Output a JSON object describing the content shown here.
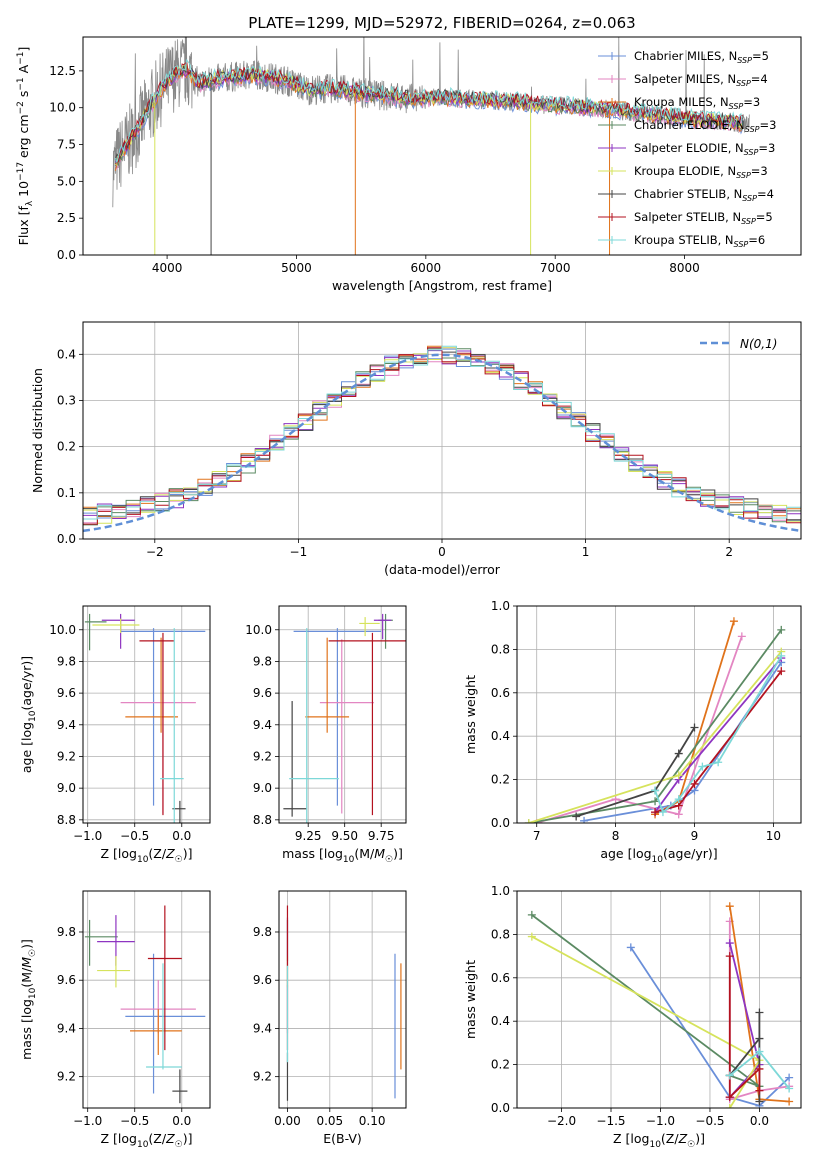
{
  "figure": {
    "title": "PLATE=1299, MJD=52972, FIBERID=0264, z=0.063"
  },
  "models": [
    {
      "name": "Chabrier MILES",
      "n_ssp": "5",
      "color": "#6a8fd9"
    },
    {
      "name": "Salpeter MILES",
      "n_ssp": "4",
      "color": "#e386c2"
    },
    {
      "name": "Kroupa MILES",
      "n_ssp": "3",
      "color": "#e0731b"
    },
    {
      "name": "Chabrier ELODIE",
      "n_ssp": "3",
      "color": "#5b8a63"
    },
    {
      "name": "Salpeter ELODIE",
      "n_ssp": "3",
      "color": "#8e35c1"
    },
    {
      "name": "Kroupa ELODIE",
      "n_ssp": "3",
      "color": "#d6e35c"
    },
    {
      "name": "Chabrier STELIB",
      "n_ssp": "4",
      "color": "#444444"
    },
    {
      "name": "Salpeter STELIB",
      "n_ssp": "5",
      "color": "#b3121f"
    },
    {
      "name": "Kroupa STELIB",
      "n_ssp": "6",
      "color": "#7dd8d8"
    }
  ],
  "legend_prefix": "N",
  "legend_sub": "SSP",
  "chart_data": [
    {
      "id": "spectrum",
      "type": "line",
      "xlabel": "wavelength [Angstrom, rest frame]",
      "ylabel": "Flux [f_λ 10^-17 erg cm^-2 s^-1 A^-1]",
      "xlim": [
        3350,
        8900
      ],
      "ylim": [
        0,
        14.8
      ],
      "xticks": [
        4000,
        5000,
        6000,
        7000,
        8000
      ],
      "yticks": [
        0.0,
        2.5,
        5.0,
        7.5,
        10.0,
        12.5
      ],
      "ytick_labels": [
        "0.0",
        "2.5",
        "5.0",
        "7.5",
        "10.0",
        "12.5"
      ],
      "grid": false,
      "legend": "upper right",
      "continuum": {
        "x": [
          3580,
          3650,
          3750,
          3850,
          3950,
          4050,
          4150,
          4250,
          4350,
          4500,
          4700,
          4900,
          5100,
          5300,
          5500,
          5700,
          5900,
          6100,
          6300,
          6500,
          6700,
          6900,
          7100,
          7300,
          7500,
          7700,
          7900,
          8100,
          8300,
          8500
        ],
        "y": [
          5.8,
          7.0,
          8.2,
          9.8,
          11.2,
          12.2,
          12.6,
          11.6,
          11.9,
          12.1,
          12.2,
          11.9,
          11.2,
          11.3,
          11.0,
          10.8,
          10.6,
          10.7,
          10.6,
          10.5,
          10.4,
          10.2,
          10.1,
          10.0,
          9.8,
          9.6,
          9.4,
          9.2,
          9.1,
          8.9
        ]
      }
    },
    {
      "id": "residuals",
      "type": "histogram",
      "xlabel": "(data-model)/error",
      "ylabel": "Normed distribution",
      "xlim": [
        -2.5,
        2.5
      ],
      "ylim": [
        0,
        0.47
      ],
      "xticks": [
        -2,
        -1,
        0,
        1,
        2
      ],
      "yticks": [
        0.0,
        0.1,
        0.2,
        0.3,
        0.4
      ],
      "ytick_labels": [
        "0.0",
        "0.1",
        "0.2",
        "0.3",
        "0.4"
      ],
      "grid": true,
      "legend": "upper right",
      "reference_label": "N(0,1)",
      "reference": {
        "mean": 0,
        "sigma": 1
      },
      "bins": {
        "start": -2.5,
        "width": 0.1,
        "count": 50
      },
      "noise": [
        0.004,
        -0.006,
        0.008,
        -0.003,
        0.01,
        -0.009,
        0.005,
        0.002,
        -0.011,
        0.007,
        0.012,
        -0.004,
        -0.008,
        0.006,
        0.003,
        -0.012,
        0.009,
        -0.002,
        0.011,
        -0.007,
        0.001,
        0.013,
        -0.01,
        0.004,
        -0.005,
        0.008,
        -0.013,
        0.006,
        0.002,
        -0.009,
        0.01,
        -0.003,
        0.007,
        -0.006,
        0.012,
        -0.011,
        0.003,
        0.005,
        -0.008,
        0.009,
        -0.004,
        0.011,
        -0.007,
        0.002,
        0.006,
        -0.012,
        0.008,
        -0.002,
        0.004,
        -0.006,
        0.01,
        -0.005,
        0.003,
        -0.009,
        0.007
      ]
    },
    {
      "id": "age_vs_z",
      "type": "errorbar",
      "xlabel": "Z [log10(Z/Z☉)]",
      "ylabel": "age [log10(age/yr)]",
      "xlim": [
        -1.05,
        0.3
      ],
      "ylim": [
        8.78,
        10.15
      ],
      "xticks": [
        -1.0,
        -0.5,
        0.0
      ],
      "xtick_labels": [
        "−1.0",
        "−0.5",
        "0.0"
      ],
      "yticks": [
        8.8,
        9.0,
        9.2,
        9.4,
        9.6,
        9.8,
        10.0
      ],
      "ytick_labels": [
        "8.8",
        "9.0",
        "9.2",
        "9.4",
        "9.6",
        "9.8",
        "10.0"
      ],
      "grid": true,
      "points": [
        {
          "x": -0.3,
          "y": 9.99,
          "xerr": [
            0.35,
            0.55
          ],
          "yerr": [
            1.1,
            0.02
          ]
        },
        {
          "x": -0.2,
          "y": 9.54,
          "xerr": [
            0.45,
            0.35
          ],
          "yerr": [
            0.7,
            0.4
          ]
        },
        {
          "x": -0.22,
          "y": 9.45,
          "xerr": [
            0.38,
            0.18
          ],
          "yerr": [
            0.1,
            0.5
          ]
        },
        {
          "x": -0.98,
          "y": 10.05,
          "xerr": [
            0.05,
            0.18
          ],
          "yerr": [
            0.18,
            0.05
          ]
        },
        {
          "x": -0.65,
          "y": 10.06,
          "xerr": [
            0.2,
            0.15
          ],
          "yerr": [
            0.18,
            0.04
          ]
        },
        {
          "x": -0.65,
          "y": 10.03,
          "xerr": [
            0.3,
            0.2
          ],
          "yerr": [
            0.05,
            0.04
          ]
        },
        {
          "x": -0.02,
          "y": 8.87,
          "xerr": [
            0.08,
            0.06
          ],
          "yerr": [
            1.15,
            0.05
          ]
        },
        {
          "x": -0.2,
          "y": 9.93,
          "xerr": [
            0.25,
            0.12
          ],
          "yerr": [
            1.1,
            0.05
          ]
        },
        {
          "x": -0.08,
          "y": 9.06,
          "xerr": [
            0.15,
            0.1
          ],
          "yerr": [
            0.3,
            0.95
          ]
        }
      ]
    },
    {
      "id": "age_vs_mass",
      "type": "errorbar",
      "xlabel": "mass [log10(M/M☉)]",
      "ylabel": "",
      "xlim": [
        9.05,
        9.92
      ],
      "ylim": [
        8.78,
        10.15
      ],
      "xticks": [
        9.25,
        9.5,
        9.75
      ],
      "xtick_labels": [
        "9.25",
        "9.50",
        "9.75"
      ],
      "yticks": [
        8.8,
        9.0,
        9.2,
        9.4,
        9.6,
        9.8,
        10.0
      ],
      "ytick_labels": [
        "8.8",
        "9.0",
        "9.2",
        "9.4",
        "9.6",
        "9.8",
        "10.0"
      ],
      "grid": true,
      "points": [
        {
          "x": 9.45,
          "y": 9.99,
          "xerr": [
            0.3,
            0.3
          ],
          "yerr": [
            1.1,
            0.02
          ]
        },
        {
          "x": 9.48,
          "y": 9.54,
          "xerr": [
            0.15,
            0.22
          ],
          "yerr": [
            0.7,
            0.4
          ]
        },
        {
          "x": 9.38,
          "y": 9.45,
          "xerr": [
            0.15,
            0.15
          ],
          "yerr": [
            0.1,
            0.5
          ]
        },
        {
          "x": 9.78,
          "y": 10.06,
          "xerr": [
            0.05,
            0.05
          ],
          "yerr": [
            0.18,
            0.04
          ]
        },
        {
          "x": 9.76,
          "y": 10.06,
          "xerr": [
            0.06,
            0.06
          ],
          "yerr": [
            0.12,
            0.04
          ]
        },
        {
          "x": 9.64,
          "y": 10.04,
          "xerr": [
            0.04,
            0.1
          ],
          "yerr": [
            0.08,
            0.04
          ]
        },
        {
          "x": 9.14,
          "y": 8.87,
          "xerr": [
            0.06,
            0.1
          ],
          "yerr": [
            0.05,
            0.68
          ]
        },
        {
          "x": 9.69,
          "y": 9.93,
          "xerr": [
            0.3,
            0.25
          ],
          "yerr": [
            1.1,
            0.05
          ]
        },
        {
          "x": 9.24,
          "y": 9.06,
          "xerr": [
            0.12,
            0.22
          ],
          "yerr": [
            0.3,
            0.95
          ]
        }
      ]
    },
    {
      "id": "weight_vs_age",
      "type": "line",
      "xlabel": "age [log10(age/yr)]",
      "ylabel": "mass weight",
      "xlim": [
        6.75,
        10.35
      ],
      "ylim": [
        0,
        1.0
      ],
      "xticks": [
        7,
        8,
        9,
        10
      ],
      "xtick_labels": [
        "7",
        "8",
        "9",
        "10"
      ],
      "yticks": [
        0.0,
        0.2,
        0.4,
        0.6,
        0.8,
        1.0
      ],
      "ytick_labels": [
        "0.0",
        "0.2",
        "0.4",
        "0.6",
        "0.8",
        "1.0"
      ],
      "grid": true,
      "series": [
        {
          "x": [
            7.6,
            8.7,
            8.8,
            9.0,
            10.1
          ],
          "y": [
            0.01,
            0.08,
            0.1,
            0.15,
            0.74
          ]
        },
        {
          "x": [
            7.0,
            8.0,
            8.8,
            9.6
          ],
          "y": [
            0.0,
            0.11,
            0.04,
            0.86
          ]
        },
        {
          "x": [
            8.5,
            8.8,
            9.5
          ],
          "y": [
            0.04,
            0.1,
            0.93
          ]
        },
        {
          "x": [
            6.9,
            8.5,
            10.1
          ],
          "y": [
            0.0,
            0.1,
            0.89
          ]
        },
        {
          "x": [
            8.5,
            8.8,
            10.1
          ],
          "y": [
            0.05,
            0.2,
            0.76
          ]
        },
        {
          "x": [
            6.9,
            8.8,
            10.1
          ],
          "y": [
            0.0,
            0.22,
            0.79
          ]
        },
        {
          "x": [
            7.5,
            8.5,
            8.8,
            9.0
          ],
          "y": [
            0.03,
            0.15,
            0.32,
            0.44
          ]
        },
        {
          "x": [
            8.5,
            8.8,
            9.0,
            10.1
          ],
          "y": [
            0.05,
            0.08,
            0.18,
            0.7
          ]
        },
        {
          "x": [
            8.5,
            8.6,
            8.8,
            9.1,
            9.3,
            10.1
          ],
          "y": [
            0.15,
            0.05,
            0.11,
            0.26,
            0.28,
            0.77
          ]
        }
      ]
    },
    {
      "id": "mass_vs_z",
      "type": "errorbar",
      "xlabel": "Z [log10(Z/Z☉)]",
      "ylabel": "mass [log10(M/M☉)]",
      "xlim": [
        -1.05,
        0.3
      ],
      "ylim": [
        9.07,
        9.97
      ],
      "xticks": [
        -1.0,
        -0.5,
        0.0
      ],
      "xtick_labels": [
        "−1.0",
        "−0.5",
        "0.0"
      ],
      "yticks": [
        9.2,
        9.4,
        9.6,
        9.8
      ],
      "ytick_labels": [
        "9.2",
        "9.4",
        "9.6",
        "9.8"
      ],
      "grid": true,
      "points": [
        {
          "x": -0.3,
          "y": 9.45,
          "xerr": [
            0.3,
            0.55
          ],
          "yerr": [
            0.32,
            0.26
          ]
        },
        {
          "x": -0.25,
          "y": 9.48,
          "xerr": [
            0.4,
            0.4
          ],
          "yerr": [
            0.1,
            0.12
          ]
        },
        {
          "x": -0.25,
          "y": 9.39,
          "xerr": [
            0.3,
            0.25
          ],
          "yerr": [
            0.1,
            0.09
          ]
        },
        {
          "x": -0.98,
          "y": 9.78,
          "xerr": [
            0.05,
            0.3
          ],
          "yerr": [
            0.12,
            0.07
          ]
        },
        {
          "x": -0.7,
          "y": 9.76,
          "xerr": [
            0.2,
            0.2
          ],
          "yerr": [
            0.1,
            0.11
          ]
        },
        {
          "x": -0.7,
          "y": 9.64,
          "xerr": [
            0.2,
            0.15
          ],
          "yerr": [
            0.07,
            0.06
          ]
        },
        {
          "x": -0.02,
          "y": 9.14,
          "xerr": [
            0.08,
            0.08
          ],
          "yerr": [
            0.05,
            0.09
          ]
        },
        {
          "x": -0.18,
          "y": 9.69,
          "xerr": [
            0.18,
            0.18
          ],
          "yerr": [
            0.38,
            0.22
          ]
        },
        {
          "x": -0.2,
          "y": 9.24,
          "xerr": [
            0.18,
            0.2
          ],
          "yerr": [
            0.01,
            0.43
          ]
        }
      ]
    },
    {
      "id": "mass_vs_ebv",
      "type": "errorbar",
      "xlabel": "E(B-V)",
      "ylabel": "",
      "xlim": [
        -0.01,
        0.14
      ],
      "ylim": [
        9.07,
        9.97
      ],
      "xticks": [
        0.0,
        0.05,
        0.1
      ],
      "xtick_labels": [
        "0.00",
        "0.05",
        "0.10"
      ],
      "yticks": [
        9.2,
        9.4,
        9.6,
        9.8
      ],
      "ytick_labels": [
        "9.2",
        "9.4",
        "9.6",
        "9.8"
      ],
      "grid": true,
      "points": [
        {
          "x": 0.127,
          "y": 9.41,
          "xerr": [
            0,
            0
          ],
          "yerr": [
            0.3,
            0.3
          ]
        },
        {
          "x": 0.0,
          "y": 9.48,
          "xerr": [
            0,
            0
          ],
          "yerr": [
            0.1,
            0.1
          ]
        },
        {
          "x": 0.134,
          "y": 9.45,
          "xerr": [
            0,
            0
          ],
          "yerr": [
            0.22,
            0.22
          ]
        },
        {
          "x": 0.0,
          "y": 9.78,
          "xerr": [
            0,
            0
          ],
          "yerr": [
            0.1,
            0.07
          ]
        },
        {
          "x": 0.0,
          "y": 9.76,
          "xerr": [
            0,
            0
          ],
          "yerr": [
            0.1,
            0.1
          ]
        },
        {
          "x": 0.0,
          "y": 9.64,
          "xerr": [
            0,
            0
          ],
          "yerr": [
            0.07,
            0.06
          ]
        },
        {
          "x": 0.0,
          "y": 9.2,
          "xerr": [
            0,
            0
          ],
          "yerr": [
            0.1,
            0.1
          ]
        },
        {
          "x": 0.0,
          "y": 9.69,
          "xerr": [
            0,
            0
          ],
          "yerr": [
            0.38,
            0.22
          ]
        },
        {
          "x": 0.0,
          "y": 9.46,
          "xerr": [
            0,
            0
          ],
          "yerr": [
            0.2,
            0.2
          ]
        }
      ]
    },
    {
      "id": "weight_vs_z",
      "type": "line",
      "xlabel": "Z [log10(Z/Z☉)]",
      "ylabel": "mass weight",
      "xlim": [
        -2.45,
        0.42
      ],
      "ylim": [
        0,
        1.0
      ],
      "xticks": [
        -2.0,
        -1.5,
        -1.0,
        -0.5,
        0.0
      ],
      "xtick_labels": [
        "−2.0",
        "−1.5",
        "−1.0",
        "−0.5",
        "0.0"
      ],
      "yticks": [
        0.0,
        0.2,
        0.4,
        0.6,
        0.8,
        1.0
      ],
      "ytick_labels": [
        "0.0",
        "0.2",
        "0.4",
        "0.6",
        "0.8",
        "1.0"
      ],
      "grid": true,
      "series": [
        {
          "x": [
            -1.3,
            -0.3,
            0.0,
            0.3
          ],
          "y": [
            0.74,
            0.05,
            0.01,
            0.14
          ]
        },
        {
          "x": [
            -0.3,
            -0.3,
            0.0,
            0.3
          ],
          "y": [
            0.86,
            0.04,
            0.08,
            0.1
          ]
        },
        {
          "x": [
            -0.3,
            0.0,
            0.3
          ],
          "y": [
            0.93,
            0.04,
            0.03
          ]
        },
        {
          "x": [
            -2.3,
            0.0,
            -0.3
          ],
          "y": [
            0.89,
            0.1,
            0.15
          ]
        },
        {
          "x": [
            -0.3,
            0.0,
            -0.3
          ],
          "y": [
            0.76,
            0.2,
            0.05
          ]
        },
        {
          "x": [
            -2.3,
            0.0,
            -0.3
          ],
          "y": [
            0.79,
            0.22,
            0.0
          ]
        },
        {
          "x": [
            -0.3,
            0.0,
            0.0,
            0.0
          ],
          "y": [
            0.15,
            0.32,
            0.44,
            0.03
          ]
        },
        {
          "x": [
            -0.3,
            -0.3,
            0.0,
            0.0
          ],
          "y": [
            0.7,
            0.05,
            0.18,
            0.08
          ]
        },
        {
          "x": [
            -0.3,
            0.0,
            0.3
          ],
          "y": [
            0.15,
            0.26,
            0.09
          ]
        }
      ]
    }
  ]
}
